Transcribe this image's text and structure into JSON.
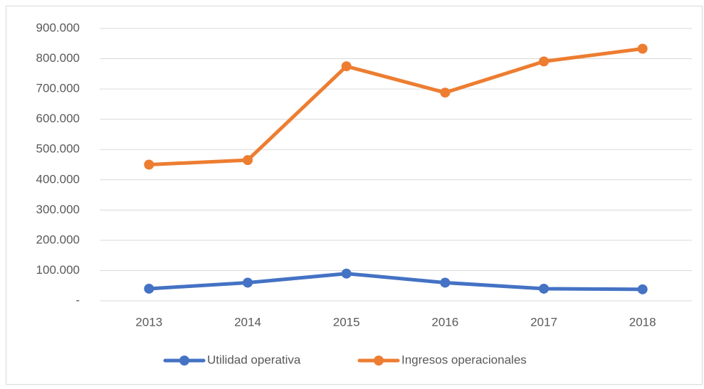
{
  "chart_data": {
    "type": "line",
    "categories": [
      "2013",
      "2014",
      "2015",
      "2016",
      "2017",
      "2018"
    ],
    "series": [
      {
        "name": "Utilidad operativa",
        "color": "#4472c4",
        "values": [
          40000,
          60000,
          90000,
          60000,
          40000,
          38000
        ]
      },
      {
        "name": "Ingresos operacionales",
        "color": "#ed7d31",
        "values": [
          450000,
          465000,
          775000,
          688000,
          791000,
          833000
        ]
      }
    ],
    "ylim": [
      0,
      900000
    ],
    "yticks": [
      {
        "value": 0,
        "label": "-"
      },
      {
        "value": 100000,
        "label": "100.000"
      },
      {
        "value": 200000,
        "label": "200.000"
      },
      {
        "value": 300000,
        "label": "300.000"
      },
      {
        "value": 400000,
        "label": "400.000"
      },
      {
        "value": 500000,
        "label": "500.000"
      },
      {
        "value": 600000,
        "label": "600.000"
      },
      {
        "value": 700000,
        "label": "700.000"
      },
      {
        "value": 800000,
        "label": "800.000"
      },
      {
        "value": 900000,
        "label": "900.000"
      }
    ],
    "grid": true,
    "legend": "bottom"
  }
}
